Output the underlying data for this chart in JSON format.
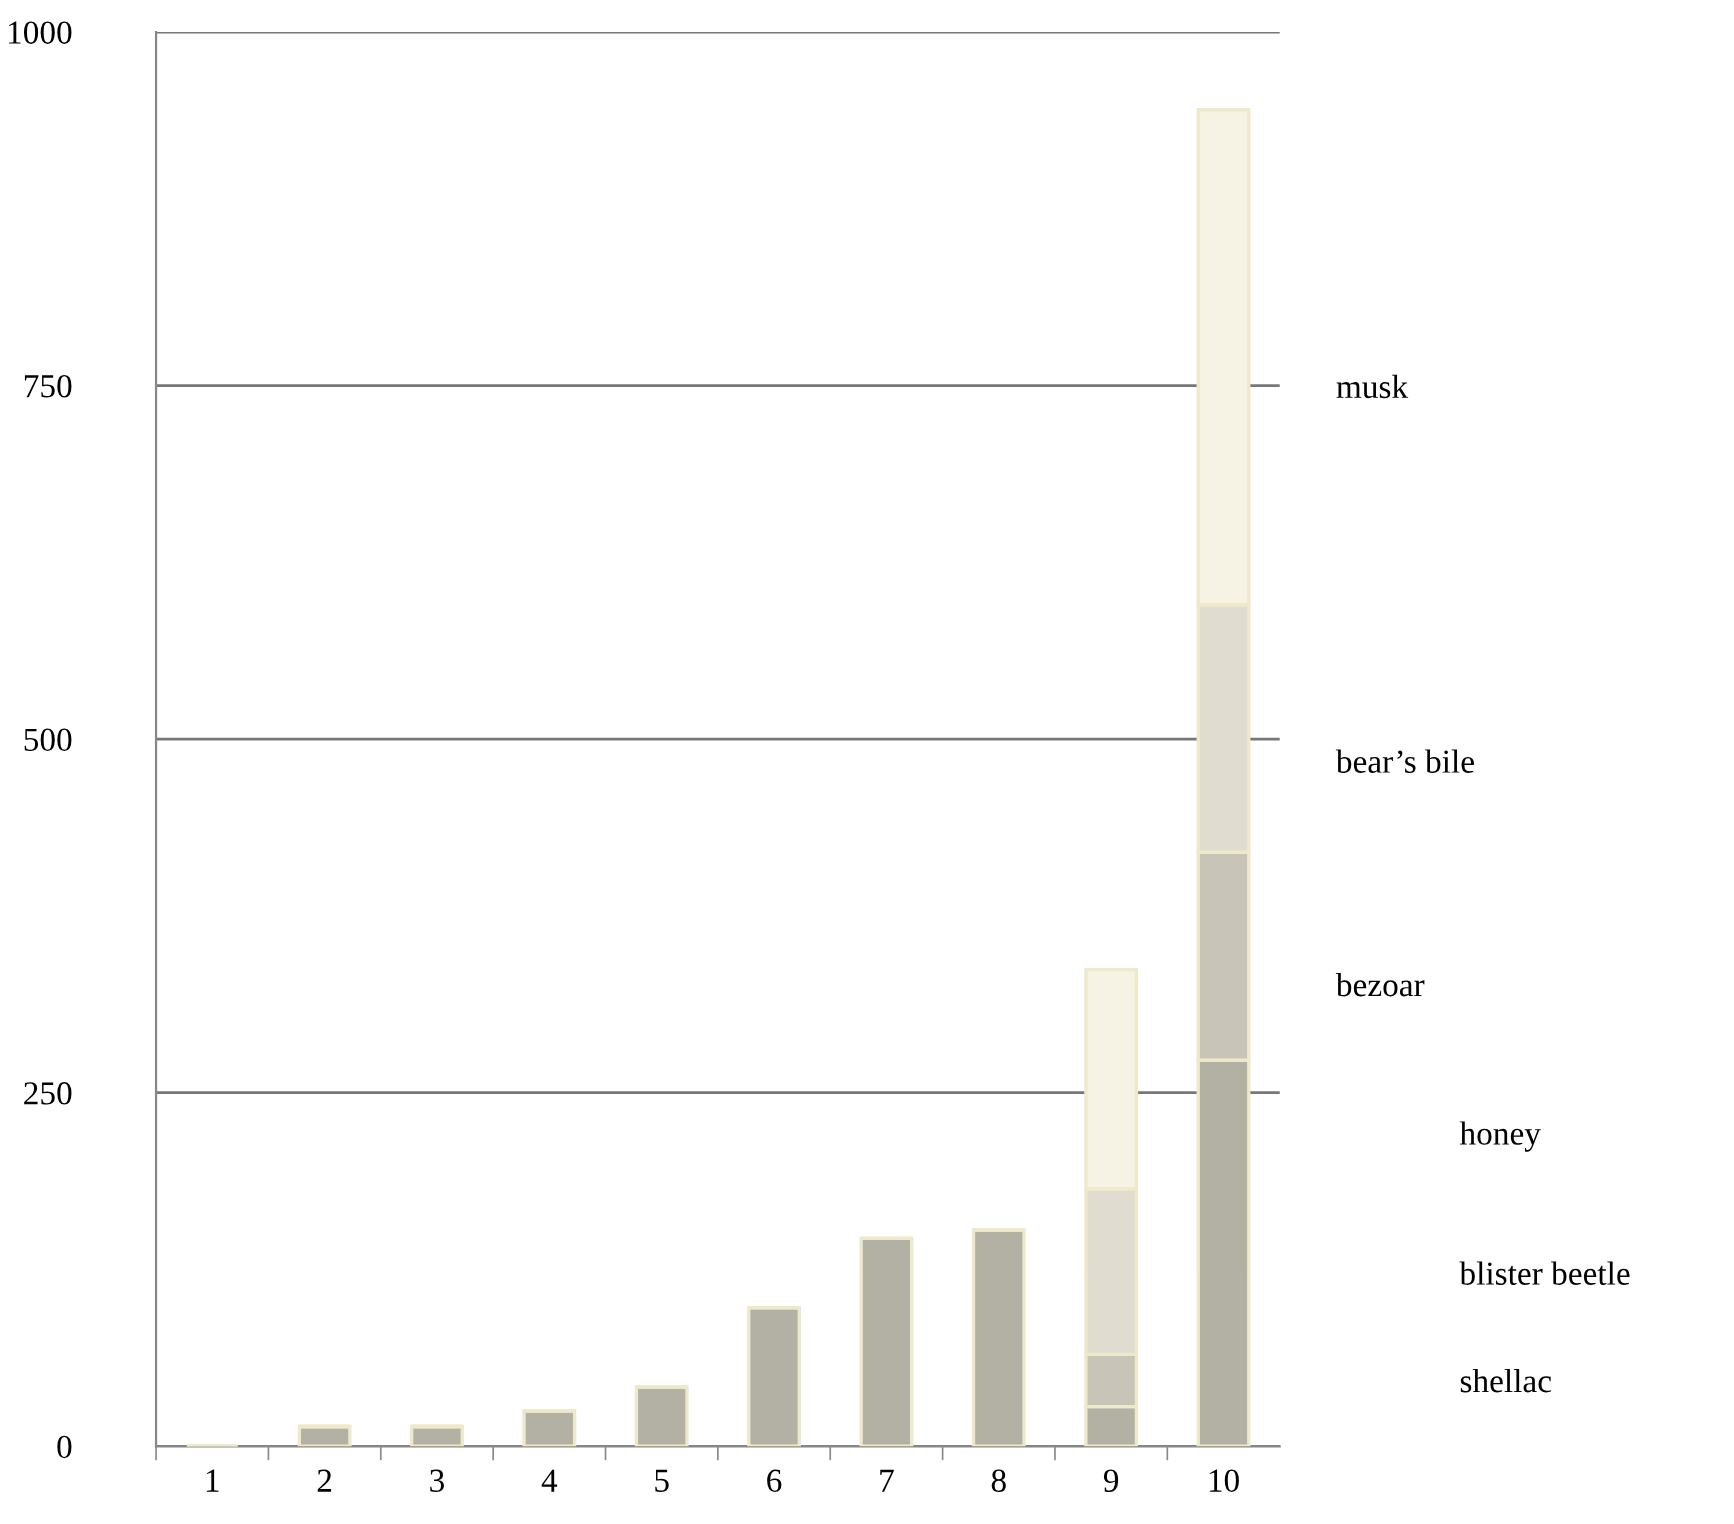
{
  "chart_data": {
    "type": "bar",
    "stacked": true,
    "categories": [
      "1",
      "2",
      "3",
      "4",
      "5",
      "6",
      "7",
      "8",
      "9",
      "10"
    ],
    "series": [
      {
        "color": "#b3b1a3",
        "values": [
          0,
          14,
          14,
          25,
          42,
          98,
          147,
          153,
          28,
          273
        ]
      },
      {
        "color": "#c8c5b8",
        "values": [
          0,
          0,
          0,
          0,
          0,
          0,
          0,
          0,
          37,
          147
        ]
      },
      {
        "color": "#e0ddd0",
        "values": [
          0,
          0,
          0,
          0,
          0,
          0,
          0,
          0,
          117,
          175
        ]
      },
      {
        "color": "#f6f3e4",
        "values": [
          0,
          0,
          0,
          0,
          0,
          0,
          0,
          0,
          155,
          350
        ]
      }
    ],
    "ylim": [
      0,
      1000
    ],
    "yticks": [
      0,
      250,
      500,
      750,
      1000
    ],
    "grid": "y",
    "annotations": [
      "musk",
      "bear’s bile",
      "bezoar",
      "honey",
      "blister beetle",
      "shellac"
    ]
  }
}
